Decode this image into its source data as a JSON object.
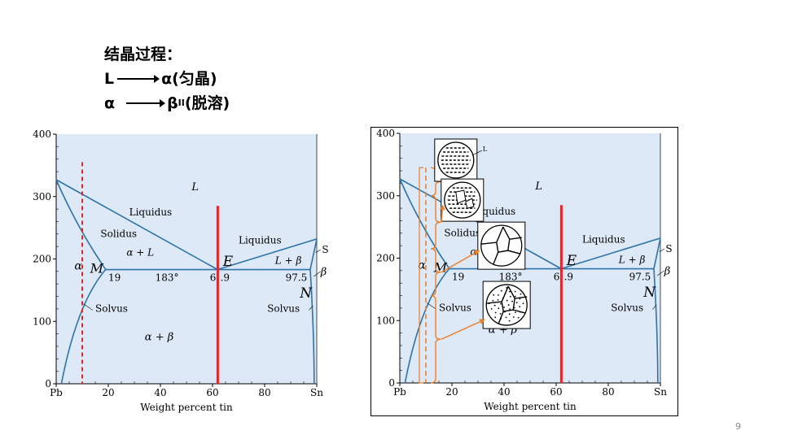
{
  "header": {
    "line1": "结晶过程：",
    "line2_start": "L",
    "line2_end": "α(匀晶)",
    "line3_start": "α",
    "line3_end_beta": "β",
    "line3_sub": "II",
    "line3_rest": "(脱溶)"
  },
  "diagram": {
    "xlabel": "Weight percent tin",
    "x_ticks": [
      "Pb",
      "20",
      "40",
      "60",
      "80",
      "Sn"
    ],
    "y_ticks": [
      "0",
      "100",
      "200",
      "300",
      "400"
    ],
    "labels": {
      "L": "L",
      "liquidus": "Liquidus",
      "solidus": "Solidus",
      "solvus": "Solvus",
      "alpha_L": "α + L",
      "L_beta": "L + β",
      "alpha_beta": "α + β",
      "alpha": "α",
      "beta": "β",
      "M": "M",
      "E": "E",
      "N": "N",
      "S": "S",
      "c19": "19",
      "t183": "183°",
      "c61": "6",
      "c9": ".9",
      "c975": "97.5",
      "micro_L": "L"
    },
    "alloy_composition_left": 10,
    "alloy_composition_right": 62,
    "colors": {
      "background": "#dde9f6",
      "curve": "#2e73a8",
      "alloy_line": "#e0262a",
      "orange": "#f07e26"
    }
  },
  "page_number": "9"
}
